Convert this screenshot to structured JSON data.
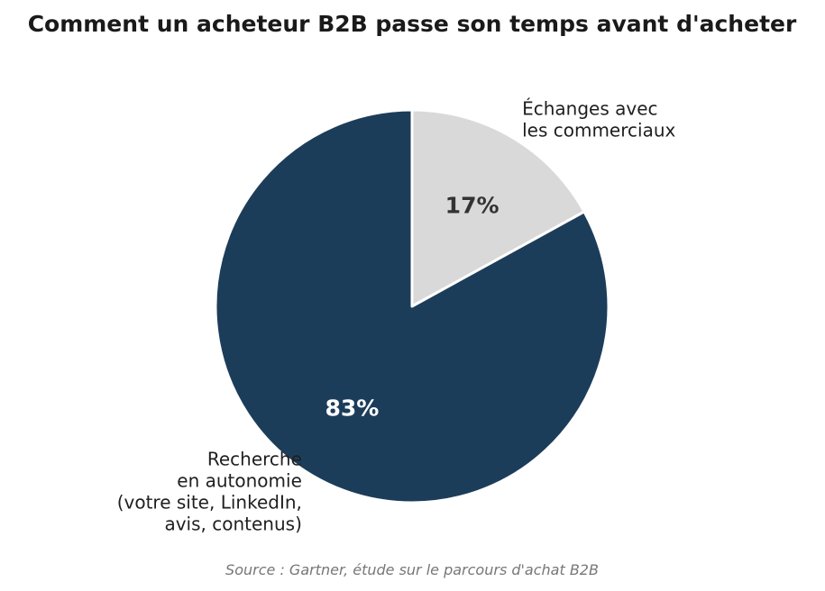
{
  "chart_data": {
    "type": "pie",
    "title": "Comment un acheteur B2B passe son temps avant d'acheter",
    "source": "Source : Gartner, étude sur le parcours d'achat B2B",
    "start_angle": "top",
    "direction": "clockwise",
    "slices": [
      {
        "label_lines": [
          "Échanges avec",
          "les commerciaux"
        ],
        "value": 17,
        "display": "17%",
        "color": "#d9d9d9",
        "text_color": "#333333"
      },
      {
        "label_lines": [
          "Recherche",
          "en autonomie",
          "(votre site, LinkedIn,",
          "avis, contenus)"
        ],
        "value": 83,
        "display": "83%",
        "color": "#1c3d5a",
        "text_color": "#ffffff"
      }
    ]
  }
}
